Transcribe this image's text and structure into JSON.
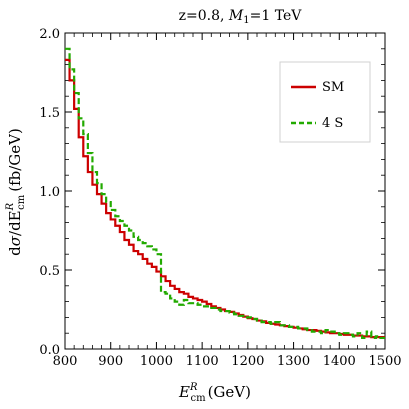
{
  "chart_data": {
    "type": "line",
    "title": "z=0.8, M1=1 TeV",
    "title_parts": {
      "prefix": "z=0.8, ",
      "var": "M",
      "sub": "1",
      "suffix": "=1 TeV"
    },
    "xlabel": "E_cm^R (GeV)",
    "xlabel_parts": {
      "var": "E",
      "sup": "R",
      "sub": "cm",
      "suffix": "(GeV)"
    },
    "ylabel": "dσ/dE_cm^R (fb/GeV)",
    "ylabel_parts": {
      "prefix": "d",
      "sigma": "σ",
      "mid": "/dE",
      "sup": "R",
      "sub": "cm",
      "suffix": "(fb/GeV)"
    },
    "xlim": [
      800,
      1500
    ],
    "ylim": [
      0,
      2.0
    ],
    "xticks": [
      "800",
      "900",
      "1000",
      "1100",
      "1200",
      "1300",
      "1400",
      "1500"
    ],
    "yticks": [
      "0.0",
      "0.5",
      "1.0",
      "1.5",
      "2.0"
    ],
    "bin_width": 10,
    "x": [
      800,
      810,
      820,
      830,
      840,
      850,
      860,
      870,
      880,
      890,
      900,
      910,
      920,
      930,
      940,
      950,
      960,
      970,
      980,
      990,
      1000,
      1010,
      1020,
      1030,
      1040,
      1050,
      1060,
      1070,
      1080,
      1090,
      1100,
      1110,
      1120,
      1130,
      1140,
      1150,
      1160,
      1170,
      1180,
      1190,
      1200,
      1210,
      1220,
      1230,
      1240,
      1250,
      1260,
      1270,
      1280,
      1290,
      1300,
      1310,
      1320,
      1330,
      1340,
      1350,
      1360,
      1370,
      1380,
      1390,
      1400,
      1410,
      1420,
      1430,
      1440,
      1450,
      1460,
      1470,
      1480,
      1490
    ],
    "series": [
      {
        "name": "SM",
        "color": "#cc0000",
        "style": "solid",
        "values": [
          1.83,
          1.7,
          1.52,
          1.34,
          1.22,
          1.12,
          1.04,
          0.98,
          0.92,
          0.86,
          0.82,
          0.78,
          0.74,
          0.69,
          0.66,
          0.62,
          0.6,
          0.57,
          0.54,
          0.52,
          0.49,
          0.46,
          0.43,
          0.4,
          0.38,
          0.36,
          0.35,
          0.33,
          0.32,
          0.31,
          0.3,
          0.285,
          0.27,
          0.26,
          0.25,
          0.24,
          0.235,
          0.225,
          0.215,
          0.205,
          0.195,
          0.19,
          0.18,
          0.175,
          0.165,
          0.16,
          0.155,
          0.15,
          0.145,
          0.14,
          0.135,
          0.13,
          0.125,
          0.12,
          0.12,
          0.115,
          0.11,
          0.105,
          0.1,
          0.1,
          0.095,
          0.09,
          0.09,
          0.085,
          0.085,
          0.08,
          0.08,
          0.075,
          0.075,
          0.075
        ]
      },
      {
        "name": "4 S",
        "color": "#22aa00",
        "style": "dashed",
        "values": [
          1.9,
          1.77,
          1.62,
          1.46,
          1.36,
          1.24,
          1.12,
          1.05,
          0.98,
          0.93,
          0.88,
          0.84,
          0.81,
          0.78,
          0.75,
          0.71,
          0.69,
          0.67,
          0.65,
          0.63,
          0.6,
          0.36,
          0.35,
          0.32,
          0.3,
          0.28,
          0.31,
          0.29,
          0.29,
          0.28,
          0.27,
          0.27,
          0.26,
          0.25,
          0.24,
          0.24,
          0.23,
          0.22,
          0.21,
          0.2,
          0.2,
          0.19,
          0.18,
          0.17,
          0.17,
          0.16,
          0.17,
          0.15,
          0.15,
          0.14,
          0.14,
          0.13,
          0.13,
          0.12,
          0.11,
          0.11,
          0.1,
          0.12,
          0.11,
          0.1,
          0.09,
          0.1,
          0.09,
          0.08,
          0.1,
          0.07,
          0.11,
          0.07,
          0.08,
          0.07
        ]
      }
    ],
    "legend": {
      "placement": "top-right",
      "entries": [
        "SM",
        "4 S"
      ]
    },
    "grid": false
  }
}
